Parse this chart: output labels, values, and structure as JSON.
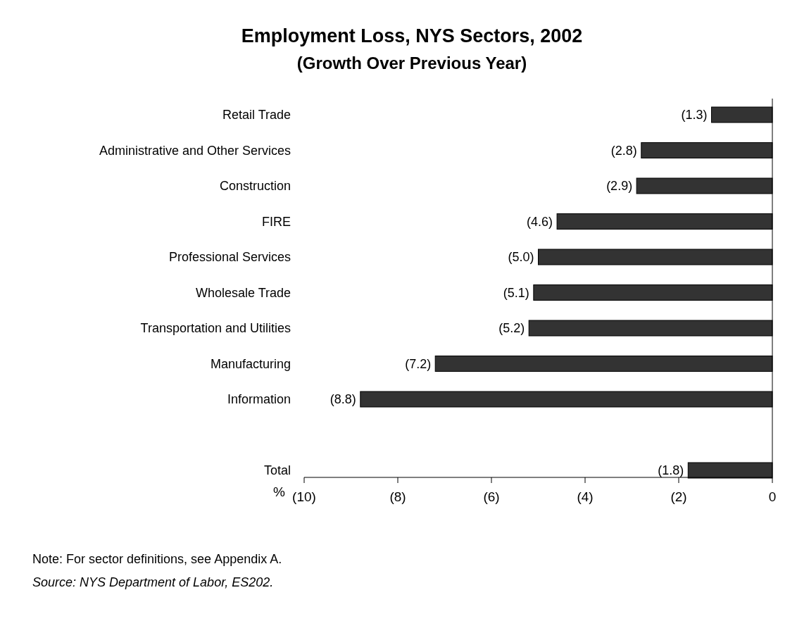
{
  "chart_data": {
    "type": "bar",
    "orientation": "horizontal",
    "title": "Employment Loss, NYS Sectors, 2002",
    "subtitle": "(Growth Over Previous Year)",
    "xlabel": "%",
    "categories": [
      "Retail Trade",
      "Administrative and Other Services",
      "Construction",
      "FIRE",
      "Professional Services",
      "Wholesale Trade",
      "Transportation and Utilities",
      "Manufacturing",
      "Information",
      null,
      "Total"
    ],
    "values": [
      -1.3,
      -2.8,
      -2.9,
      -4.6,
      -5.0,
      -5.1,
      -5.2,
      -7.2,
      -8.8,
      null,
      -1.8
    ],
    "value_labels": [
      "(1.3)",
      "(2.8)",
      "(2.9)",
      "(4.6)",
      "(5.0)",
      "(5.1)",
      "(5.2)",
      "(7.2)",
      "(8.8)",
      null,
      "(1.8)"
    ],
    "color": "#333333",
    "xlim": [
      -10,
      0
    ],
    "xticks": [
      {
        "value": -10,
        "label": "(10)"
      },
      {
        "value": -8,
        "label": "(8)"
      },
      {
        "value": -6,
        "label": "(6)"
      },
      {
        "value": -4,
        "label": "(4)"
      },
      {
        "value": -2,
        "label": "(2)"
      },
      0
    ],
    "grid": false,
    "annotations": [
      "Note: For sector definitions, see Appendix A.",
      "Source: NYS Department of Labor, ES202."
    ]
  }
}
